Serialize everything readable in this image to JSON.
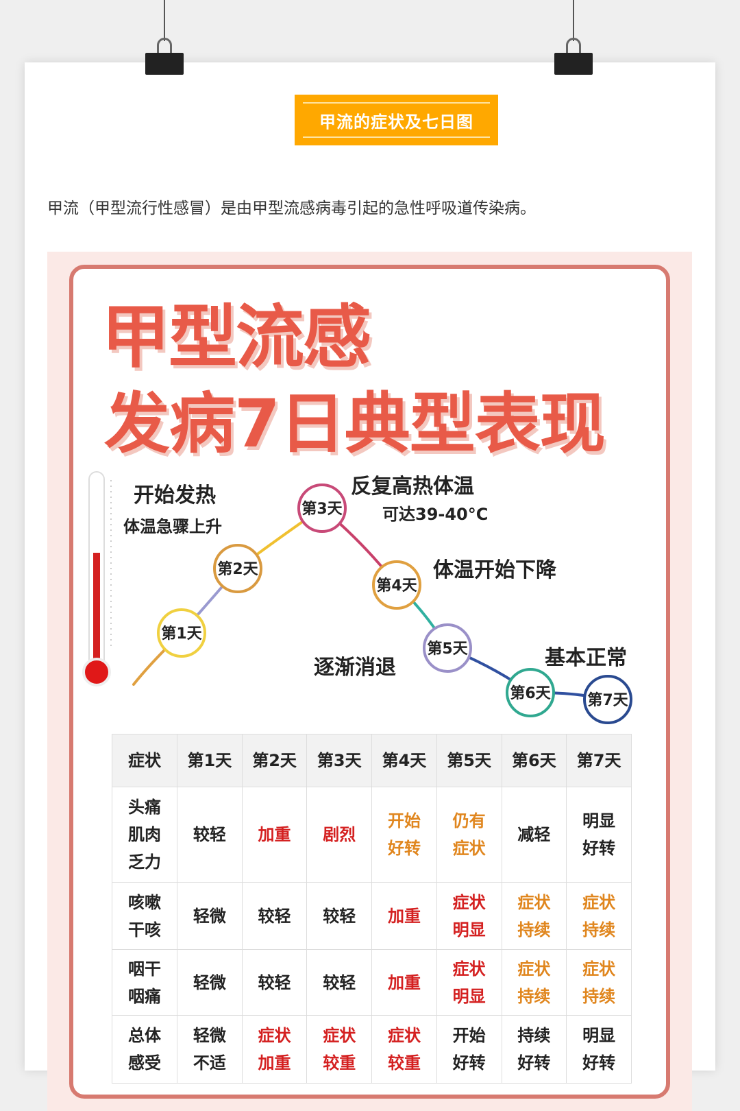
{
  "header": {
    "title": "甲流的症状及七日图",
    "intro": "甲流（甲型流行性感冒）是由甲型流感病毒引起的急性呼吸道传染病。"
  },
  "poster": {
    "title_line1": "甲型流感",
    "title_line2": "发病7日典型表现",
    "colors": {
      "title": "#e85a48",
      "frame": "#d77a70",
      "severe": "#d42020",
      "moderate": "#e0861e",
      "accent": "#ffa800"
    },
    "annotations": {
      "fever_start": "开始发热",
      "fever_rise": "体温急骤上升",
      "high_fever": "反复高热体温",
      "high_fever_temp": "可达39-40°C",
      "temp_drop": "体温开始下降",
      "fading": "逐渐消退",
      "normal": "基本正常"
    },
    "days": [
      "第1天",
      "第2天",
      "第3天",
      "第4天",
      "第5天",
      "第6天",
      "第7天"
    ]
  },
  "table": {
    "headers": [
      "症状",
      "第1天",
      "第2天",
      "第3天",
      "第4天",
      "第5天",
      "第6天",
      "第7天"
    ],
    "rows": [
      {
        "symptom": "头痛\n肌肉\n乏力",
        "cells": [
          {
            "t": "较轻",
            "c": "dark"
          },
          {
            "t": "加重",
            "c": "red"
          },
          {
            "t": "剧烈",
            "c": "red"
          },
          {
            "t": "开始\n好转",
            "c": "orange"
          },
          {
            "t": "仍有\n症状",
            "c": "orange"
          },
          {
            "t": "减轻",
            "c": "dark"
          },
          {
            "t": "明显\n好转",
            "c": "dark"
          }
        ]
      },
      {
        "symptom": "咳嗽\n干咳",
        "cells": [
          {
            "t": "轻微",
            "c": "dark"
          },
          {
            "t": "较轻",
            "c": "dark"
          },
          {
            "t": "较轻",
            "c": "dark"
          },
          {
            "t": "加重",
            "c": "red"
          },
          {
            "t": "症状\n明显",
            "c": "red"
          },
          {
            "t": "症状\n持续",
            "c": "orange"
          },
          {
            "t": "症状\n持续",
            "c": "orange"
          }
        ]
      },
      {
        "symptom": "咽干\n咽痛",
        "cells": [
          {
            "t": "轻微",
            "c": "dark"
          },
          {
            "t": "较轻",
            "c": "dark"
          },
          {
            "t": "较轻",
            "c": "dark"
          },
          {
            "t": "加重",
            "c": "red"
          },
          {
            "t": "症状\n明显",
            "c": "red"
          },
          {
            "t": "症状\n持续",
            "c": "orange"
          },
          {
            "t": "症状\n持续",
            "c": "orange"
          }
        ]
      },
      {
        "symptom": "总体\n感受",
        "cells": [
          {
            "t": "轻微\n不适",
            "c": "dark"
          },
          {
            "t": "症状\n加重",
            "c": "red"
          },
          {
            "t": "症状\n较重",
            "c": "red"
          },
          {
            "t": "症状\n较重",
            "c": "red"
          },
          {
            "t": "开始\n好转",
            "c": "dark"
          },
          {
            "t": "持续\n好转",
            "c": "dark"
          },
          {
            "t": "明显\n好转",
            "c": "dark"
          }
        ]
      }
    ]
  }
}
